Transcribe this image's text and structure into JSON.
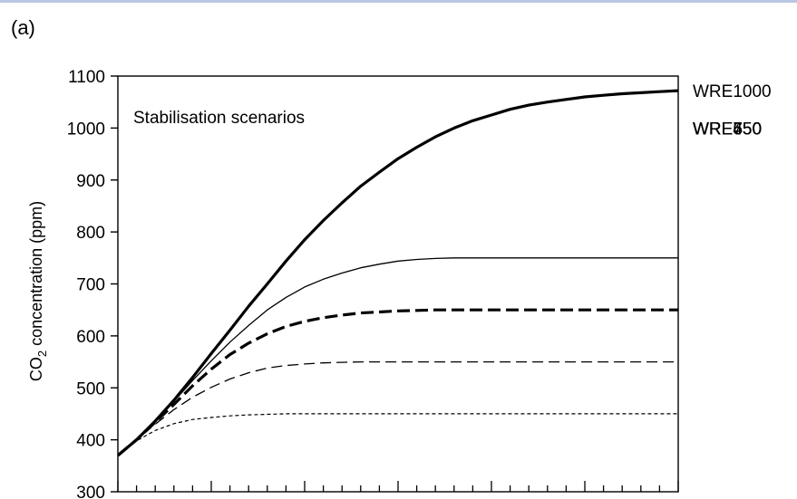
{
  "panel_label": "(a)",
  "chart_data": {
    "type": "line",
    "title": "",
    "annotation": "Stabilisation scenarios",
    "ylabel": {
      "prefix": "CO",
      "subscript": "2",
      "suffix": " concentration (ppm)"
    },
    "xlabel": "",
    "xlim": [
      2000,
      2300
    ],
    "ylim": [
      300,
      1100
    ],
    "yticks": [
      300,
      400,
      500,
      600,
      700,
      800,
      900,
      1000,
      1100
    ],
    "x_major_ticks": [
      2000,
      2050,
      2100,
      2150,
      2200,
      2250,
      2300
    ],
    "x_minor_step": 10,
    "grid": false,
    "legend": "labels at right end of each line",
    "x": [
      2000,
      2010,
      2020,
      2030,
      2040,
      2050,
      2060,
      2070,
      2080,
      2090,
      2100,
      2110,
      2120,
      2130,
      2140,
      2150,
      2160,
      2170,
      2180,
      2190,
      2200,
      2210,
      2220,
      2230,
      2240,
      2250,
      2260,
      2270,
      2280,
      2290,
      2300
    ],
    "series": [
      {
        "name": "WRE1000",
        "style": "thick-solid",
        "values": [
          370,
          400,
          436,
          476,
          520,
          566,
          611,
          657,
          700,
          744,
          785,
          822,
          856,
          888,
          915,
          941,
          963,
          983,
          1000,
          1014,
          1025,
          1036,
          1044,
          1050,
          1055,
          1060,
          1063,
          1066,
          1068,
          1070,
          1072
        ]
      },
      {
        "name": "WRE750",
        "style": "thin-solid",
        "values": [
          370,
          400,
          436,
          474,
          514,
          552,
          588,
          620,
          650,
          674,
          694,
          709,
          721,
          731,
          738,
          744,
          747,
          749,
          750,
          750,
          750,
          750,
          750,
          750,
          750,
          750,
          750,
          750,
          750,
          750,
          750
        ]
      },
      {
        "name": "WRE650",
        "style": "thick-dashed",
        "values": [
          370,
          400,
          434,
          468,
          504,
          536,
          564,
          586,
          604,
          618,
          628,
          635,
          640,
          644,
          646,
          648,
          649,
          650,
          650,
          650,
          650,
          650,
          650,
          650,
          650,
          650,
          650,
          650,
          650,
          650,
          650
        ]
      },
      {
        "name": "WRE550",
        "style": "thin-dashed",
        "values": [
          370,
          400,
          430,
          458,
          482,
          501,
          517,
          529,
          538,
          543,
          546,
          548,
          549,
          550,
          550,
          550,
          550,
          550,
          550,
          550,
          550,
          550,
          550,
          550,
          550,
          550,
          550,
          550,
          550,
          550,
          550
        ]
      },
      {
        "name": "WRE450",
        "style": "dotted",
        "values": [
          370,
          398,
          418,
          431,
          439,
          443,
          446,
          448,
          449,
          450,
          450,
          450,
          450,
          450,
          450,
          450,
          450,
          450,
          450,
          450,
          450,
          450,
          450,
          450,
          450,
          450,
          450,
          450,
          450,
          450,
          450
        ]
      }
    ]
  }
}
